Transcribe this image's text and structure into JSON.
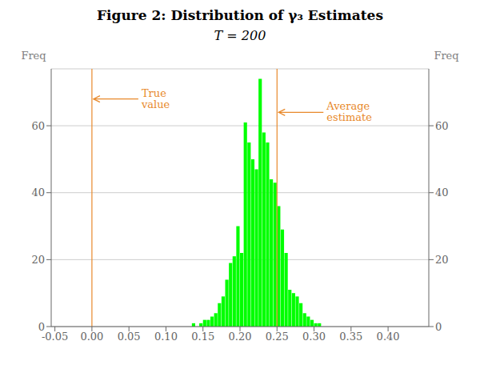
{
  "chart_data": {
    "type": "histogram",
    "title": "Figure 2: Distribution of γ₃ Estimates",
    "subtitle": "T = 200",
    "ylabel": "Freq",
    "y2label": "Freq",
    "x": [
      -0.055,
      -0.045,
      -0.04,
      -0.035,
      -0.03,
      -0.025,
      -0.02,
      -0.015,
      -0.01,
      -0.005,
      0.0,
      0.005,
      0.01,
      0.015,
      0.02,
      0.025,
      0.03,
      0.035,
      0.04,
      0.045,
      0.05,
      0.055,
      0.06,
      0.065,
      0.07,
      0.075,
      0.08,
      0.085,
      0.09,
      0.095,
      0.1,
      0.105,
      0.11,
      0.115,
      0.12,
      0.125,
      0.13,
      0.135,
      0.14,
      0.145,
      0.15,
      0.155,
      0.16,
      0.165,
      0.17,
      0.175,
      0.18,
      0.185,
      0.19,
      0.195,
      0.2,
      0.205,
      0.21,
      0.215,
      0.22,
      0.225,
      0.23,
      0.235,
      0.24,
      0.245,
      0.25,
      0.255,
      0.26,
      0.265,
      0.27,
      0.275,
      0.28,
      0.285,
      0.29,
      0.295,
      0.3,
      0.305,
      0.31,
      0.315,
      0.32,
      0.325,
      0.33,
      0.335,
      0.34,
      0.345,
      0.35,
      0.355,
      0.36,
      0.365,
      0.37,
      0.375,
      0.38,
      0.385,
      0.39,
      0.395,
      0.4,
      0.405,
      0.41,
      0.415,
      0.42,
      0.425,
      0.43,
      0.435,
      0.44,
      0.445
    ],
    "values": [
      0,
      0,
      0,
      0,
      0,
      0,
      0,
      0,
      0,
      0,
      0,
      0,
      0,
      0,
      0,
      0,
      0,
      0,
      0,
      0,
      0,
      0,
      0,
      0,
      0,
      0,
      0,
      0,
      0,
      0,
      0,
      0,
      0,
      0,
      0,
      0,
      0,
      1,
      0,
      1,
      2,
      2,
      3,
      4,
      7,
      9,
      14,
      19,
      21,
      30,
      22,
      61,
      55,
      50,
      47,
      74,
      58,
      55,
      44,
      43,
      36,
      29,
      22,
      11,
      10,
      9,
      7,
      4,
      3,
      2,
      1,
      1,
      0,
      0,
      0,
      0,
      0,
      0,
      0,
      0,
      0,
      0,
      0,
      0,
      0,
      0,
      0,
      0,
      0,
      0,
      0,
      0,
      0,
      0,
      0,
      0,
      0,
      0,
      0,
      0
    ],
    "color": "#00FF00",
    "xlim": [
      -0.055,
      0.455
    ],
    "xticks": [
      -0.05,
      {
        "value": 0.0,
        "label": "0.00"
      },
      0.05,
      {
        "value": 0.1,
        "label": "0.10"
      },
      0.15,
      {
        "value": 0.2,
        "label": "0.20"
      },
      0.25,
      {
        "value": 0.3,
        "label": "0.30"
      },
      0.35,
      {
        "value": 0.4,
        "label": "0.40"
      }
    ],
    "ylim": [
      0,
      77
    ],
    "yticks": [
      0,
      20,
      40,
      60
    ],
    "y2lim": [
      0,
      77
    ],
    "y2ticks": [
      0,
      20,
      40,
      60
    ],
    "grid": true,
    "reference_lines": [
      {
        "x": 0.0,
        "color": "#E8892B"
      },
      {
        "x": 0.25,
        "color": "#E8892B"
      }
    ],
    "annotations": [
      {
        "text": "True\nvalue",
        "x": 0.0,
        "y": 68,
        "color": "#E8892B"
      },
      {
        "text": "Average\nestimate",
        "x": 0.25,
        "y": 64,
        "color": "#E8892B"
      }
    ]
  }
}
